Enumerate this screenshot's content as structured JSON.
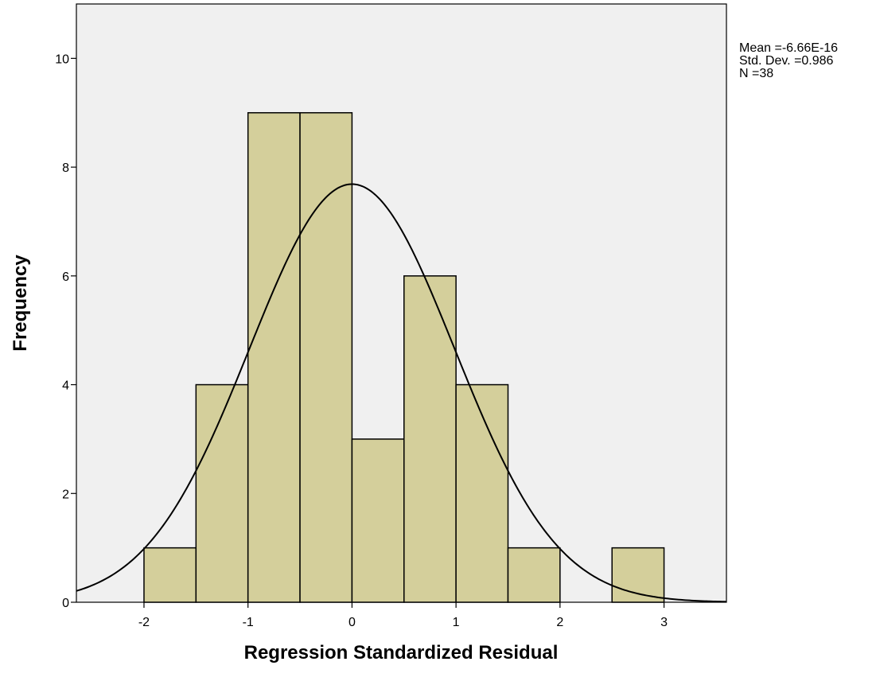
{
  "chart_data": {
    "type": "bar",
    "subtype": "histogram",
    "xlabel": "Regression Standardized Residual",
    "ylabel": "Frequency",
    "xlim": [
      -2.65,
      3.6
    ],
    "ylim": [
      0,
      11
    ],
    "xticks": [
      -2,
      -1,
      0,
      1,
      2,
      3
    ],
    "yticks": [
      0,
      2,
      4,
      6,
      8,
      10
    ],
    "bins": [
      {
        "start": -2.0,
        "end": -1.5,
        "count": 1
      },
      {
        "start": -1.5,
        "end": -1.0,
        "count": 4
      },
      {
        "start": -1.0,
        "end": -0.5,
        "count": 9
      },
      {
        "start": -0.5,
        "end": 0.0,
        "count": 9
      },
      {
        "start": 0.0,
        "end": 0.5,
        "count": 3
      },
      {
        "start": 0.5,
        "end": 1.0,
        "count": 6
      },
      {
        "start": 1.0,
        "end": 1.5,
        "count": 4
      },
      {
        "start": 1.5,
        "end": 2.0,
        "count": 1
      },
      {
        "start": 2.0,
        "end": 2.5,
        "count": 0
      },
      {
        "start": 2.5,
        "end": 3.0,
        "count": 1
      }
    ],
    "normal_curve": {
      "mean": -6.66e-16,
      "std_dev": 0.986,
      "n": 38,
      "bin_width": 0.5
    },
    "grid": false,
    "colors": {
      "bar_fill": "#d4cf9b",
      "bar_stroke": "#000000",
      "plot_background": "#f0f0f0",
      "curve": "#000000"
    }
  },
  "stats": {
    "mean_label": "Mean =-6.66E-16",
    "std_label": "Std. Dev. =0.986",
    "n_label": "N =38"
  }
}
